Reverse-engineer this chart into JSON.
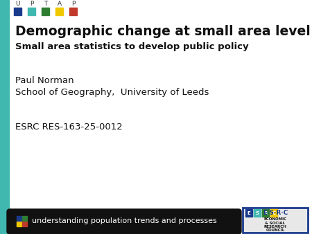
{
  "bg_color": "#ffffff",
  "left_bar_color": "#40b8b0",
  "title_line1": "Demographic change at small area level",
  "title_line2": "Small area statistics to develop public policy",
  "author": "Paul Norman",
  "affiliation": "School of Geography,  University of Leeds",
  "grant": "ESRC RES-163-25-0012",
  "footer_text": "understanding population trends and processes",
  "footer_bg": "#111111",
  "footer_text_color": "#ffffff",
  "uptap_letters": [
    "U",
    "P",
    "T",
    "A",
    "P"
  ],
  "uptap_colors": [
    "#1a3a8c",
    "#40b8b0",
    "#2e7d32",
    "#f0c800",
    "#c0392b"
  ],
  "footer_icon_colors": [
    "#f0c800",
    "#c0392b",
    "#1a3a8c",
    "#2e7d32"
  ],
  "esrc_border_color": "#1a3a8c",
  "esrc_bg": "#e8e8e8",
  "esrc_title_color": "#1a3a8c"
}
